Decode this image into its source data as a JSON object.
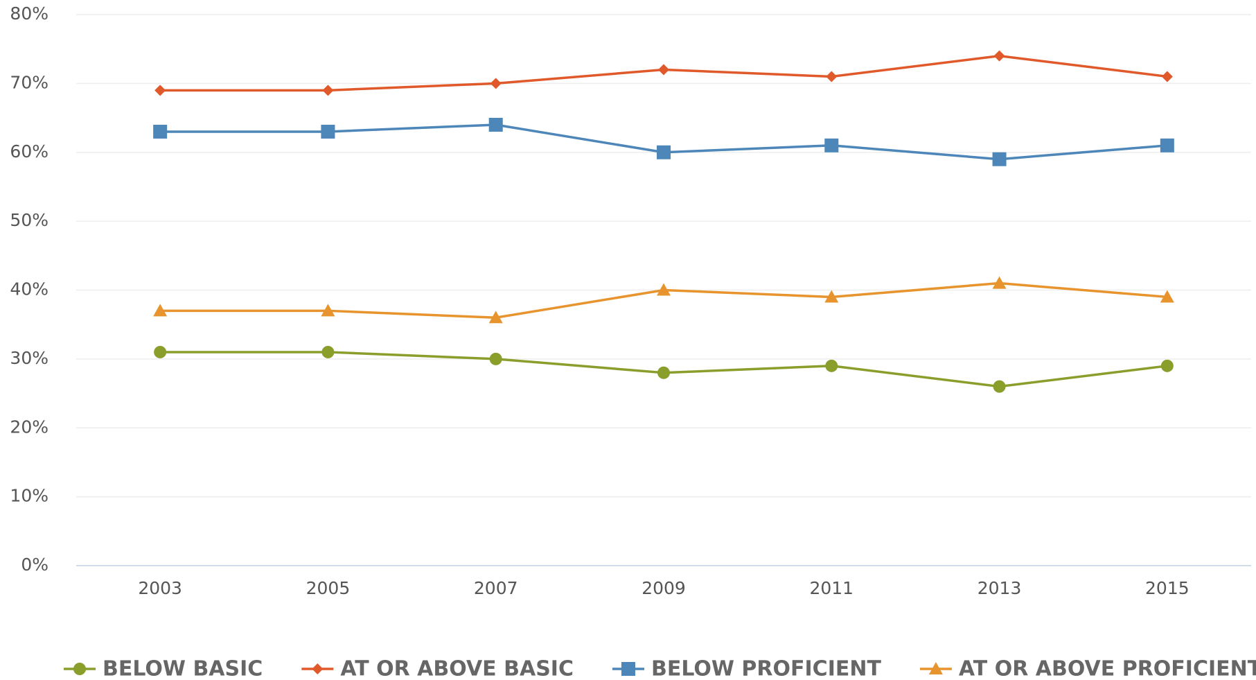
{
  "chart_data": {
    "type": "line",
    "categories": [
      "2003",
      "2005",
      "2007",
      "2009",
      "2011",
      "2013",
      "2015"
    ],
    "series": [
      {
        "name": "BELOW BASIC",
        "color": "#8a9e2c",
        "marker": "circle",
        "values": [
          31,
          31,
          30,
          28,
          29,
          26,
          29
        ]
      },
      {
        "name": "AT OR ABOVE BASIC",
        "color": "#e0592a",
        "marker": "diamond",
        "values": [
          69,
          69,
          70,
          72,
          71,
          74,
          71
        ]
      },
      {
        "name": "BELOW PROFICIENT",
        "color": "#4d86b9",
        "marker": "square",
        "values": [
          63,
          63,
          64,
          60,
          61,
          59,
          61
        ]
      },
      {
        "name": "AT OR ABOVE PROFICIENT",
        "color": "#e8942e",
        "marker": "triangle",
        "values": [
          37,
          37,
          36,
          40,
          39,
          41,
          39
        ]
      }
    ],
    "ylim": [
      0,
      80
    ],
    "yticks": [
      {
        "value": 0,
        "label": "0%"
      },
      {
        "value": 10,
        "label": "10%"
      },
      {
        "value": 20,
        "label": "20%"
      },
      {
        "value": 30,
        "label": "30%"
      },
      {
        "value": 40,
        "label": "40%"
      },
      {
        "value": 50,
        "label": "50%"
      },
      {
        "value": 60,
        "label": "60%"
      },
      {
        "value": 70,
        "label": "70%"
      },
      {
        "value": 80,
        "label": "80%"
      }
    ],
    "grid": true,
    "legend": "bottom"
  }
}
